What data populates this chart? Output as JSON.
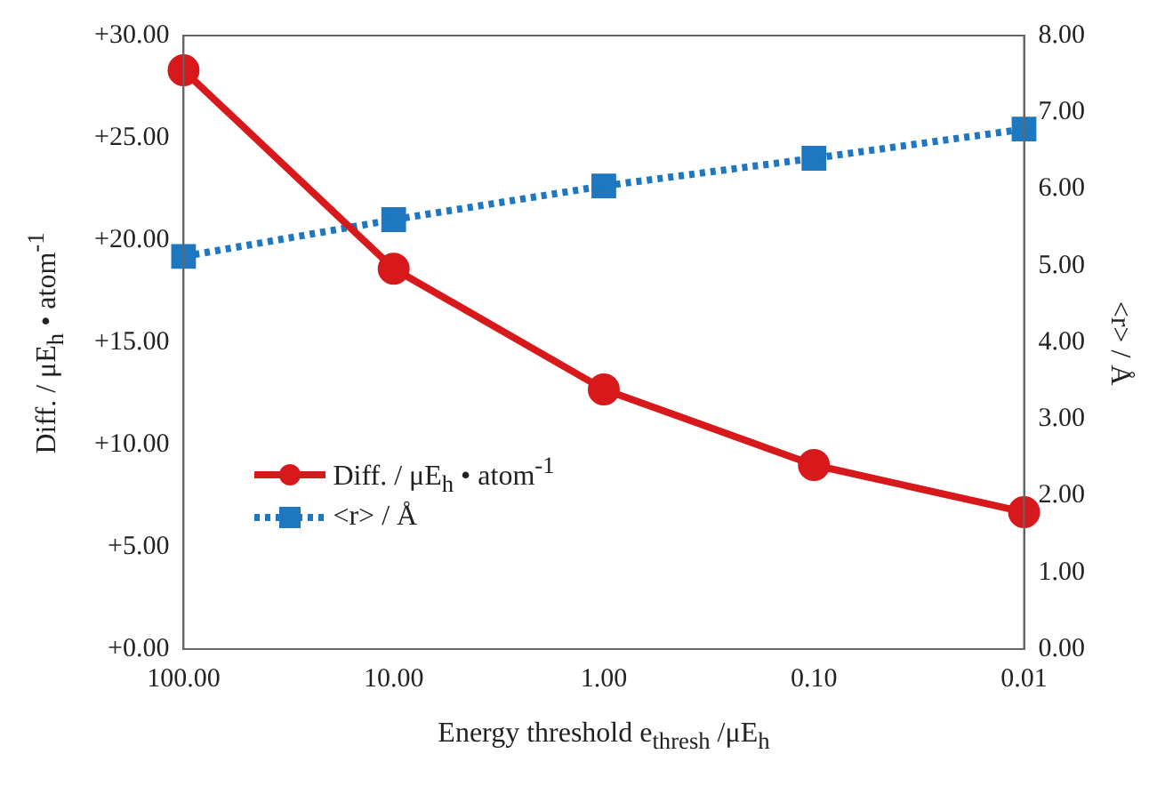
{
  "chart_data": {
    "type": "line",
    "xlabel": "Energy threshold e$_{thresh}$ /μE$_{h}$",
    "ylabel": "Diff. / μE$_{h}$ • atom$^{-1}$",
    "y2label": "<r> / Å",
    "categories": [
      "100.00",
      "10.00",
      "1.00",
      "0.10",
      "0.01"
    ],
    "series": [
      {
        "name": "Diff. / μE$_{h}$ • atom$^{-1}$",
        "color": "#d7191c",
        "values": [
          28.3,
          18.6,
          12.7,
          9.0,
          6.7
        ],
        "marker": "circle",
        "line_style": "solid"
      },
      {
        "name": "<r> / Å",
        "color": "#1f77c0",
        "values": [
          5.12,
          5.6,
          6.04,
          6.4,
          6.78
        ],
        "axis": "y2",
        "marker": "square",
        "line_style": "dotted"
      }
    ],
    "ylim": [
      0,
      30
    ],
    "yticks": [
      {
        "value": 0,
        "label": "+0.00"
      },
      {
        "value": 5,
        "label": "+5.00"
      },
      {
        "value": 10,
        "label": "+10.00"
      },
      {
        "value": 15,
        "label": "+15.00"
      },
      {
        "value": 20,
        "label": "+20.00"
      },
      {
        "value": 25,
        "label": "+25.00"
      },
      {
        "value": 30,
        "label": "+30.00"
      }
    ],
    "y2lim": [
      0,
      8
    ],
    "y2ticks": [
      {
        "value": 0,
        "label": "0.00"
      },
      {
        "value": 1,
        "label": "1.00"
      },
      {
        "value": 2,
        "label": "2.00"
      },
      {
        "value": 3,
        "label": "3.00"
      },
      {
        "value": 4,
        "label": "4.00"
      },
      {
        "value": 5,
        "label": "5.00"
      },
      {
        "value": 6,
        "label": "6.00"
      },
      {
        "value": 7,
        "label": "7.00"
      },
      {
        "value": 8,
        "label": "8.00"
      }
    ],
    "grid": false,
    "legend": "bottom left"
  }
}
